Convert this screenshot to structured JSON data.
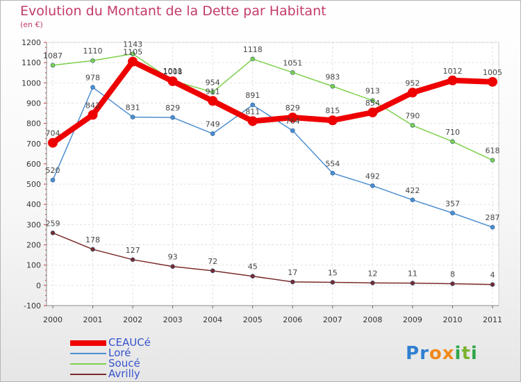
{
  "title": "Evolution du Montant de la Dette par Habitant",
  "subtitle": "(en €)",
  "brand": {
    "letters": [
      "P",
      "r",
      "o",
      "x",
      "i",
      "t",
      "i"
    ],
    "colors": [
      "#2f7fd0",
      "#2f7fd0",
      "#f08a1c",
      "#f08a1c",
      "#2fa64a",
      "#7ab32e",
      "#2fa64a"
    ]
  },
  "chart_data": {
    "type": "line",
    "title": "Evolution du Montant de la Dette par Habitant",
    "ylabel": "(en €)",
    "xlabel": "",
    "x": [
      "2000",
      "2001",
      "2002",
      "2003",
      "2004",
      "2005",
      "2006",
      "2007",
      "2008",
      "2009",
      "2010",
      "2011"
    ],
    "ylim": [
      -100,
      1200
    ],
    "yticks": [
      -100,
      0,
      100,
      200,
      300,
      400,
      500,
      600,
      700,
      800,
      900,
      1000,
      1100,
      1200
    ],
    "grid": true,
    "legend_position": "bottom-left",
    "series": [
      {
        "name": "CEAUCé",
        "color": "#ee0000",
        "values": [
          704,
          842,
          1105,
          1008,
          911,
          811,
          829,
          815,
          854,
          952,
          1012,
          1005
        ]
      },
      {
        "name": "Loré",
        "color": "#4d8ed0",
        "values": [
          520,
          978,
          831,
          829,
          749,
          891,
          764,
          554,
          492,
          422,
          357,
          287
        ]
      },
      {
        "name": "Soucé",
        "color": "#7dd04a",
        "values": [
          1087,
          1110,
          1143,
          1011,
          954,
          1118,
          1051,
          983,
          913,
          790,
          710,
          618
        ]
      },
      {
        "name": "Avrilly",
        "color": "#7a2a2a",
        "values": [
          259,
          178,
          127,
          93,
          72,
          45,
          17,
          15,
          12,
          11,
          8,
          4
        ]
      }
    ]
  }
}
